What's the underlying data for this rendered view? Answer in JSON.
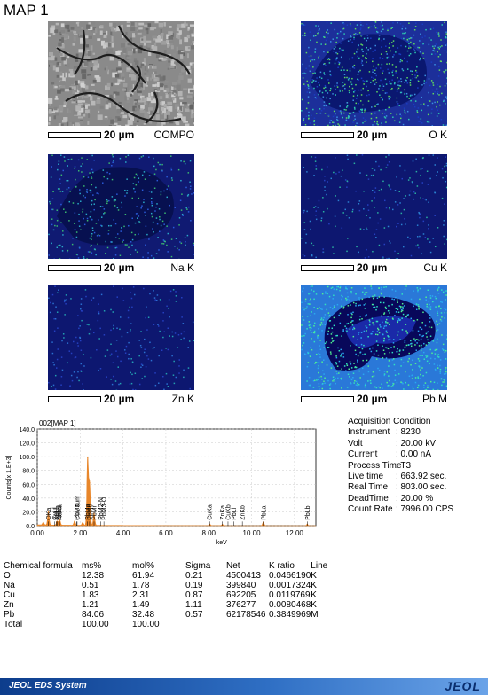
{
  "page": {
    "title": "MAP 1"
  },
  "maps": [
    {
      "label": "COMPO",
      "scale": "20 µm",
      "style": "sem"
    },
    {
      "label": "O K",
      "scale": "20 µm",
      "style": "ok"
    },
    {
      "label": "Na K",
      "scale": "20 µm",
      "style": "nak"
    },
    {
      "label": "Cu K",
      "scale": "20 µm",
      "style": "cuk"
    },
    {
      "label": "Zn K",
      "scale": "20 µm",
      "style": "znk"
    },
    {
      "label": "Pb M",
      "scale": "20 µm",
      "style": "pbm"
    }
  ],
  "chart_data": {
    "type": "line",
    "title": "002[MAP 1]",
    "xlabel": "keV",
    "ylabel": "Counts[x 1.E+3]",
    "xlim": [
      0,
      13
    ],
    "ylim": [
      0,
      140
    ],
    "x_ticks": [
      "0.00",
      "2.00",
      "4.00",
      "6.00",
      "8.00",
      "10.00",
      "12.00"
    ],
    "y_ticks": [
      "0.0",
      "20.0",
      "40.0",
      "60.0",
      "80.0",
      "100.0",
      "120.0",
      "140.0"
    ],
    "grid": true,
    "spectrum_color": "#e8862a",
    "peaks": [
      {
        "x": 0.28,
        "y": 4
      },
      {
        "x": 0.52,
        "y": 20
      },
      {
        "x": 0.93,
        "y": 6
      },
      {
        "x": 1.04,
        "y": 9
      },
      {
        "x": 1.74,
        "y": 6
      },
      {
        "x": 2.12,
        "y": 4
      },
      {
        "x": 2.35,
        "y": 98
      },
      {
        "x": 2.44,
        "y": 62
      },
      {
        "x": 2.65,
        "y": 18
      },
      {
        "x": 8.05,
        "y": 2
      },
      {
        "x": 8.64,
        "y": 1.5
      },
      {
        "x": 10.55,
        "y": 5
      },
      {
        "x": 12.6,
        "y": 2
      }
    ],
    "line_labels": [
      {
        "text": "OKa",
        "x": 0.52
      },
      {
        "text": "ZnLa",
        "x": 1.01
      },
      {
        "text": "CuLa",
        "x": 0.93
      },
      {
        "text": "NaKa",
        "x": 1.04
      },
      {
        "text": "CuLl",
        "x": 0.81
      },
      {
        "text": "ZnLl",
        "x": 0.88
      },
      {
        "text": "CuL sum",
        "x": 1.86
      },
      {
        "text": "PbMz",
        "x": 1.84
      },
      {
        "text": "PbMa",
        "x": 2.34
      },
      {
        "text": "PbMb",
        "x": 2.44
      },
      {
        "text": "PbMr",
        "x": 2.65
      },
      {
        "text": "PbM2-N",
        "x": 2.96
      },
      {
        "text": "PbM3-O",
        "x": 3.11
      },
      {
        "text": "CuKa",
        "x": 8.04
      },
      {
        "text": "ZnKa",
        "x": 8.63
      },
      {
        "text": "PbLl",
        "x": 9.18
      },
      {
        "text": "CuKb",
        "x": 8.9
      },
      {
        "text": "ZnKb",
        "x": 9.57
      },
      {
        "text": "PbLa",
        "x": 10.55
      },
      {
        "text": "PbLb",
        "x": 12.61
      }
    ]
  },
  "acquisition": {
    "heading": "Acquisition Condition",
    "rows": [
      {
        "k": "Instrument",
        "v": ": 8230"
      },
      {
        "k": "Volt",
        "v": ": 20.00 kV"
      },
      {
        "k": "Current",
        "v": ": 0.00 nA"
      },
      {
        "k": "Process Time",
        "v": ": T3"
      },
      {
        "k": "Live time",
        "v": ": 663.92 sec."
      },
      {
        "k": "Real Time",
        "v": ": 803.00 sec."
      },
      {
        "k": "DeadTime",
        "v": ": 20.00 %"
      },
      {
        "k": "Count Rate",
        "v": ": 7996.00 CPS"
      }
    ]
  },
  "composition": {
    "headers": [
      "Chemical formula",
      "ms%",
      "mol%",
      "Sigma",
      "Net",
      "K ratio",
      "Line"
    ],
    "rows": [
      [
        "O",
        "12.38",
        "61.94",
        "0.21",
        "4500413",
        "0.0466190",
        "K"
      ],
      [
        "Na",
        "0.51",
        "1.78",
        "0.19",
        "399840",
        "0.0017324",
        "K"
      ],
      [
        "Cu",
        "1.83",
        "2.31",
        "0.87",
        "692205",
        "0.0119769",
        "K"
      ],
      [
        "Zn",
        "1.21",
        "1.49",
        "1.11",
        "376277",
        "0.0080468",
        "K"
      ],
      [
        "Pb",
        "84.06",
        "32.48",
        "0.57",
        "62178546",
        "0.3849969",
        "M"
      ],
      [
        "Total",
        "100.00",
        "100.00",
        "",
        "",
        "",
        ""
      ]
    ]
  },
  "footer": {
    "system": "JEOL EDS System",
    "brand": "JEOL"
  }
}
